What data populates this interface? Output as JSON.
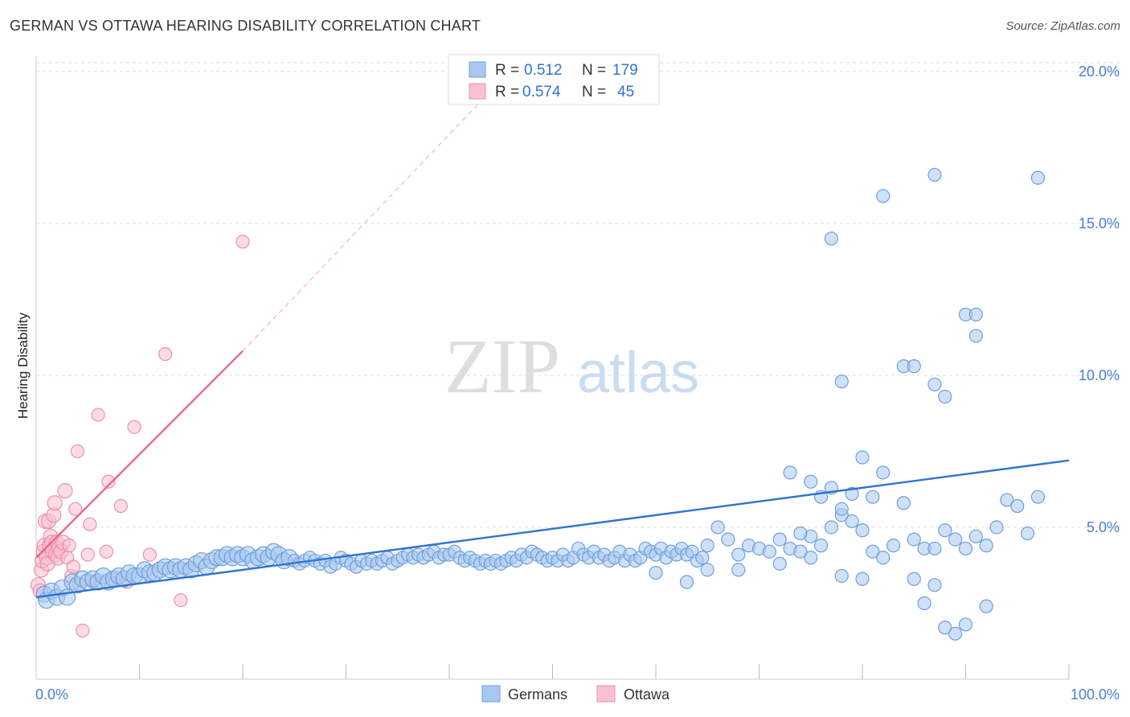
{
  "header": {
    "title": "GERMAN VS OTTAWA HEARING DISABILITY CORRELATION CHART",
    "source": "Source: ZipAtlas.com"
  },
  "watermark": {
    "zip": "ZIP",
    "atlas": "atlas"
  },
  "legend_top": {
    "rows": [
      {
        "r_label": "R =",
        "r_value": "0.512",
        "n_label": "N =",
        "n_value": "179"
      },
      {
        "r_label": "R =",
        "r_value": "0.574",
        "n_label": "N =",
        "n_value": "45"
      }
    ]
  },
  "legend_bottom": {
    "items": [
      "Germans",
      "Ottawa"
    ]
  },
  "colors": {
    "german_fill": "#a8c8f0",
    "german_stroke": "#6f9fdc",
    "german_line": "#2f74d0",
    "ottawa_fill": "#f8c0d0",
    "ottawa_stroke": "#ec8fab",
    "ottawa_line": "#e8688f",
    "tick_text": "#4a7fd0",
    "grid": "#dddddd"
  },
  "chart_data": {
    "type": "scatter",
    "title": "GERMAN VS OTTAWA HEARING DISABILITY CORRELATION CHART",
    "xlabel": "",
    "ylabel": "Hearing Disability",
    "xlim": [
      0,
      100
    ],
    "ylim": [
      0,
      20.5
    ],
    "x_tick_labels": [
      "0.0%",
      "100.0%"
    ],
    "y_ticks": [
      5,
      10,
      15,
      20
    ],
    "y_tick_labels": [
      "5.0%",
      "10.0%",
      "15.0%",
      "20.0%"
    ],
    "grid": true,
    "legend": "bottom-center",
    "series": [
      {
        "name": "Germans",
        "r": 0.512,
        "n": 179,
        "trend": {
          "x": [
            0,
            100
          ],
          "y": [
            2.7,
            7.2
          ]
        },
        "points": [
          [
            0.8,
            2.8
          ],
          [
            1,
            2.6
          ],
          [
            1.5,
            2.9
          ],
          [
            2,
            2.7
          ],
          [
            2.5,
            3.0
          ],
          [
            3,
            2.7
          ],
          [
            3.5,
            3.2
          ],
          [
            4,
            3.1
          ],
          [
            4.5,
            3.3
          ],
          [
            5,
            3.2
          ],
          [
            5.5,
            3.3
          ],
          [
            6,
            3.2
          ],
          [
            6.5,
            3.4
          ],
          [
            7,
            3.2
          ],
          [
            7.5,
            3.3
          ],
          [
            8,
            3.4
          ],
          [
            8.5,
            3.3
          ],
          [
            9,
            3.5
          ],
          [
            9.5,
            3.4
          ],
          [
            10,
            3.4
          ],
          [
            10.5,
            3.6
          ],
          [
            11,
            3.5
          ],
          [
            11.5,
            3.5
          ],
          [
            12,
            3.6
          ],
          [
            12.5,
            3.7
          ],
          [
            13,
            3.6
          ],
          [
            13.5,
            3.7
          ],
          [
            14,
            3.6
          ],
          [
            14.5,
            3.7
          ],
          [
            15,
            3.6
          ],
          [
            15.5,
            3.8
          ],
          [
            16,
            3.9
          ],
          [
            16.5,
            3.7
          ],
          [
            17,
            3.9
          ],
          [
            17.5,
            4.0
          ],
          [
            18,
            4.0
          ],
          [
            18.5,
            4.1
          ],
          [
            19,
            4.0
          ],
          [
            19.5,
            4.1
          ],
          [
            20,
            4.0
          ],
          [
            20.5,
            4.1
          ],
          [
            21,
            3.9
          ],
          [
            21.5,
            4.0
          ],
          [
            22,
            4.1
          ],
          [
            22.5,
            4.0
          ],
          [
            23,
            4.2
          ],
          [
            23.5,
            4.1
          ],
          [
            24,
            3.9
          ],
          [
            24.5,
            4.0
          ],
          [
            25,
            3.9
          ],
          [
            25.5,
            3.8
          ],
          [
            26,
            3.9
          ],
          [
            26.5,
            4.0
          ],
          [
            27,
            3.9
          ],
          [
            27.5,
            3.8
          ],
          [
            28,
            3.9
          ],
          [
            28.5,
            3.7
          ],
          [
            29,
            3.8
          ],
          [
            29.5,
            4.0
          ],
          [
            30,
            3.9
          ],
          [
            30.5,
            3.8
          ],
          [
            31,
            3.7
          ],
          [
            31.5,
            3.9
          ],
          [
            32,
            3.8
          ],
          [
            32.5,
            3.9
          ],
          [
            33,
            3.8
          ],
          [
            33.5,
            3.9
          ],
          [
            34,
            4.0
          ],
          [
            34.5,
            3.8
          ],
          [
            35,
            3.9
          ],
          [
            35.5,
            4.0
          ],
          [
            36,
            4.1
          ],
          [
            36.5,
            4.0
          ],
          [
            37,
            4.1
          ],
          [
            37.5,
            4.0
          ],
          [
            38,
            4.1
          ],
          [
            38.5,
            4.2
          ],
          [
            39,
            4.0
          ],
          [
            39.5,
            4.1
          ],
          [
            40,
            4.1
          ],
          [
            40.5,
            4.2
          ],
          [
            41,
            4.0
          ],
          [
            41.5,
            3.9
          ],
          [
            42,
            4.0
          ],
          [
            42.5,
            3.9
          ],
          [
            43,
            3.8
          ],
          [
            43.5,
            3.9
          ],
          [
            44,
            3.8
          ],
          [
            44.5,
            3.9
          ],
          [
            45,
            3.8
          ],
          [
            45.5,
            3.9
          ],
          [
            46,
            4.0
          ],
          [
            46.5,
            3.9
          ],
          [
            47,
            4.1
          ],
          [
            47.5,
            4.0
          ],
          [
            48,
            4.2
          ],
          [
            48.5,
            4.1
          ],
          [
            49,
            4.0
          ],
          [
            49.5,
            3.9
          ],
          [
            50,
            4.0
          ],
          [
            50.5,
            3.9
          ],
          [
            51,
            4.1
          ],
          [
            51.5,
            3.9
          ],
          [
            52,
            4.0
          ],
          [
            52.5,
            4.3
          ],
          [
            53,
            4.1
          ],
          [
            53.5,
            4.0
          ],
          [
            54,
            4.2
          ],
          [
            54.5,
            4.0
          ],
          [
            55,
            4.1
          ],
          [
            55.5,
            3.9
          ],
          [
            56,
            4.0
          ],
          [
            56.5,
            4.2
          ],
          [
            57,
            3.9
          ],
          [
            57.5,
            4.1
          ],
          [
            58,
            3.9
          ],
          [
            58.5,
            4.0
          ],
          [
            59,
            4.3
          ],
          [
            59.5,
            4.2
          ],
          [
            60,
            4.1
          ],
          [
            60.5,
            4.3
          ],
          [
            61,
            4.0
          ],
          [
            61.5,
            4.2
          ],
          [
            62,
            4.1
          ],
          [
            62.5,
            4.3
          ],
          [
            63,
            4.1
          ],
          [
            63.5,
            4.2
          ],
          [
            64,
            3.9
          ],
          [
            64.5,
            4.0
          ],
          [
            65,
            4.4
          ],
          [
            66,
            5.0
          ],
          [
            67,
            4.6
          ],
          [
            68,
            4.1
          ],
          [
            69,
            4.4
          ],
          [
            70,
            4.3
          ],
          [
            71,
            4.2
          ],
          [
            72,
            4.6
          ],
          [
            73,
            4.3
          ],
          [
            74,
            4.2
          ],
          [
            75,
            4.7
          ],
          [
            76,
            4.4
          ],
          [
            77,
            5.0
          ],
          [
            78,
            5.4
          ],
          [
            79,
            5.2
          ],
          [
            80,
            4.9
          ],
          [
            81,
            4.2
          ],
          [
            82,
            4.0
          ],
          [
            83,
            4.4
          ],
          [
            84,
            5.8
          ],
          [
            85,
            4.6
          ],
          [
            86,
            4.3
          ],
          [
            87,
            4.3
          ],
          [
            88,
            4.9
          ],
          [
            89,
            4.6
          ],
          [
            90,
            4.3
          ],
          [
            91,
            4.7
          ],
          [
            92,
            4.4
          ],
          [
            93,
            5.0
          ],
          [
            94,
            5.9
          ],
          [
            95,
            5.7
          ],
          [
            73,
            6.8
          ],
          [
            75,
            6.5
          ],
          [
            77,
            6.3
          ],
          [
            80,
            7.3
          ],
          [
            82,
            6.8
          ],
          [
            76,
            6.0
          ],
          [
            79,
            6.1
          ],
          [
            81,
            6.0
          ],
          [
            78,
            5.6
          ],
          [
            74,
            4.8
          ],
          [
            60,
            3.5
          ],
          [
            63,
            3.2
          ],
          [
            65,
            3.6
          ],
          [
            68,
            3.6
          ],
          [
            72,
            3.8
          ],
          [
            75,
            4.0
          ],
          [
            78,
            3.4
          ],
          [
            80,
            3.3
          ],
          [
            85,
            3.3
          ],
          [
            87,
            3.1
          ],
          [
            86,
            2.5
          ],
          [
            88,
            1.7
          ],
          [
            89,
            1.5
          ],
          [
            90,
            1.8
          ],
          [
            92,
            2.4
          ],
          [
            96,
            4.8
          ],
          [
            97,
            6.0
          ],
          [
            78,
            9.8
          ],
          [
            84,
            10.3
          ],
          [
            85,
            10.3
          ],
          [
            87,
            9.7
          ],
          [
            88,
            9.3
          ],
          [
            90,
            12.0
          ],
          [
            91,
            12.0
          ],
          [
            91,
            11.3
          ],
          [
            77,
            14.5
          ],
          [
            82,
            15.9
          ],
          [
            87,
            16.6
          ],
          [
            97,
            16.5
          ]
        ]
      },
      {
        "name": "Ottawa",
        "r": 0.574,
        "n": 45,
        "trend": {
          "x": [
            0,
            20
          ],
          "y": [
            4.0,
            10.8
          ]
        },
        "trend_extension": {
          "x": [
            20,
            43
          ],
          "y": [
            10.8,
            19.0
          ]
        },
        "points": [
          [
            0.2,
            3.1
          ],
          [
            0.4,
            2.9
          ],
          [
            0.5,
            3.6
          ],
          [
            0.6,
            3.9
          ],
          [
            0.7,
            4.2
          ],
          [
            0.8,
            4.4
          ],
          [
            0.9,
            5.2
          ],
          [
            1.0,
            4.0
          ],
          [
            1.1,
            3.8
          ],
          [
            1.2,
            5.2
          ],
          [
            1.3,
            4.4
          ],
          [
            1.4,
            4.7
          ],
          [
            1.5,
            4.5
          ],
          [
            1.6,
            4.2
          ],
          [
            1.7,
            5.4
          ],
          [
            1.8,
            5.8
          ],
          [
            1.9,
            4.1
          ],
          [
            2.0,
            4.5
          ],
          [
            2.1,
            4.0
          ],
          [
            2.2,
            4.3
          ],
          [
            2.4,
            4.2
          ],
          [
            2.6,
            4.5
          ],
          [
            2.8,
            6.2
          ],
          [
            3.0,
            4.0
          ],
          [
            3.2,
            4.4
          ],
          [
            3.4,
            3.4
          ],
          [
            3.6,
            3.7
          ],
          [
            3.8,
            5.6
          ],
          [
            4.0,
            7.5
          ],
          [
            4.2,
            3.1
          ],
          [
            4.5,
            1.6
          ],
          [
            5.0,
            4.1
          ],
          [
            5.2,
            5.1
          ],
          [
            5.5,
            3.2
          ],
          [
            6.0,
            8.7
          ],
          [
            6.8,
            4.2
          ],
          [
            7.0,
            6.5
          ],
          [
            7.5,
            3.3
          ],
          [
            8.2,
            5.7
          ],
          [
            8.8,
            3.2
          ],
          [
            9.5,
            8.3
          ],
          [
            11.0,
            4.1
          ],
          [
            12.5,
            10.7
          ],
          [
            14.0,
            2.6
          ],
          [
            20.0,
            14.4
          ]
        ]
      }
    ]
  }
}
